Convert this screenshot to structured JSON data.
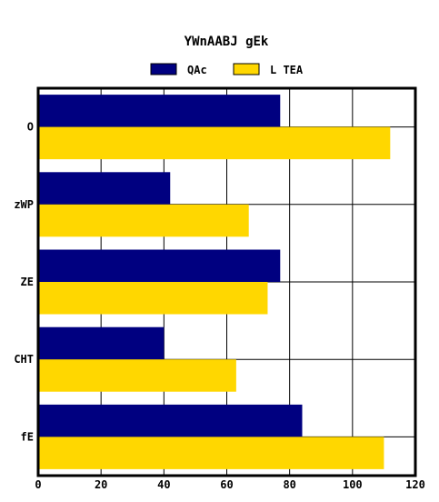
{
  "chart_data": {
    "type": "bar",
    "orientation": "horizontal",
    "title": "YWnAABJ gEk",
    "xlabel": "",
    "ylabel": "",
    "categories": [
      "O",
      "zWP",
      "ZE",
      "CHT",
      "fE"
    ],
    "series": [
      {
        "name": "QAc",
        "color": "#000080",
        "values": [
          77,
          42,
          77,
          40,
          84
        ]
      },
      {
        "name": "L TEA",
        "color": "#FFD700",
        "values": [
          112,
          67,
          73,
          63,
          110
        ]
      }
    ],
    "xlim": [
      0,
      120
    ],
    "x_ticks": [
      0,
      20,
      40,
      60,
      80,
      100,
      120
    ],
    "grid": true,
    "legend_position": "top"
  }
}
